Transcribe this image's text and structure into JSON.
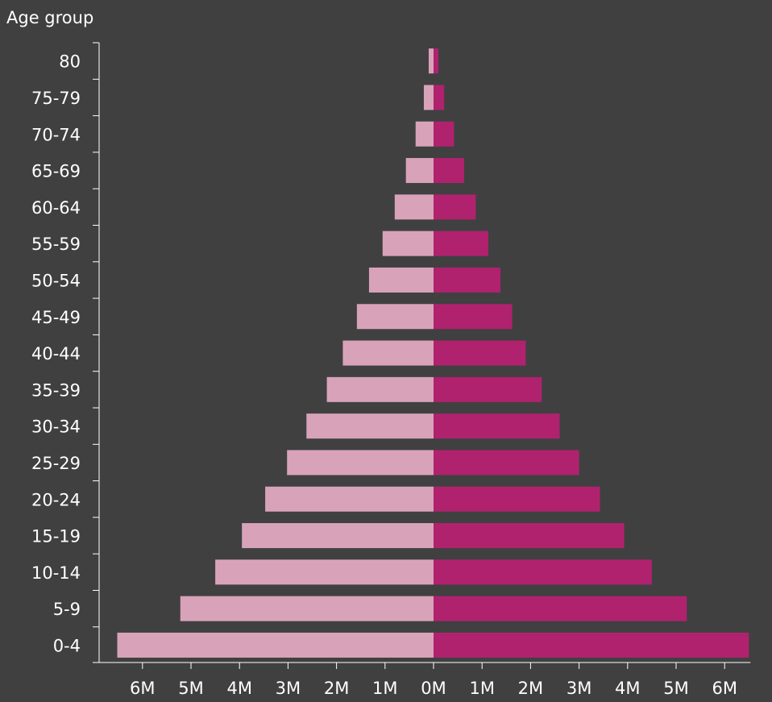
{
  "chart_data": {
    "type": "bar",
    "orientation": "horizontal",
    "layout": "population-pyramid",
    "ylabel": "Age group",
    "xlim": [
      -6.5,
      6.5
    ],
    "categories": [
      "80",
      "75-79",
      "70-74",
      "65-69",
      "60-64",
      "55-59",
      "50-54",
      "45-49",
      "40-44",
      "35-39",
      "30-34",
      "25-29",
      "20-24",
      "15-19",
      "10-14",
      "5-9",
      "0-4"
    ],
    "series": [
      {
        "side": "left",
        "color": "#d8a3b9",
        "values": [
          0.1,
          0.2,
          0.37,
          0.57,
          0.8,
          1.05,
          1.33,
          1.58,
          1.87,
          2.2,
          2.62,
          3.02,
          3.47,
          3.95,
          4.5,
          5.22,
          6.52
        ]
      },
      {
        "side": "right",
        "color": "#b0226e",
        "values": [
          0.1,
          0.22,
          0.42,
          0.63,
          0.87,
          1.13,
          1.38,
          1.62,
          1.9,
          2.23,
          2.6,
          3.0,
          3.43,
          3.93,
          4.5,
          5.22,
          6.5
        ]
      }
    ],
    "xticks": [
      {
        "value": -6,
        "label": "6M"
      },
      {
        "value": -5,
        "label": "5M"
      },
      {
        "value": -4,
        "label": "4M"
      },
      {
        "value": -3,
        "label": "3M"
      },
      {
        "value": -2,
        "label": "2M"
      },
      {
        "value": -1,
        "label": "1M"
      },
      {
        "value": 0,
        "label": "0M"
      },
      {
        "value": 1,
        "label": "1M"
      },
      {
        "value": 2,
        "label": "2M"
      },
      {
        "value": 3,
        "label": "3M"
      },
      {
        "value": 4,
        "label": "4M"
      },
      {
        "value": 5,
        "label": "5M"
      },
      {
        "value": 6,
        "label": "6M"
      }
    ],
    "grid": false,
    "background": "#404041",
    "axis_color": "#ffffff"
  }
}
